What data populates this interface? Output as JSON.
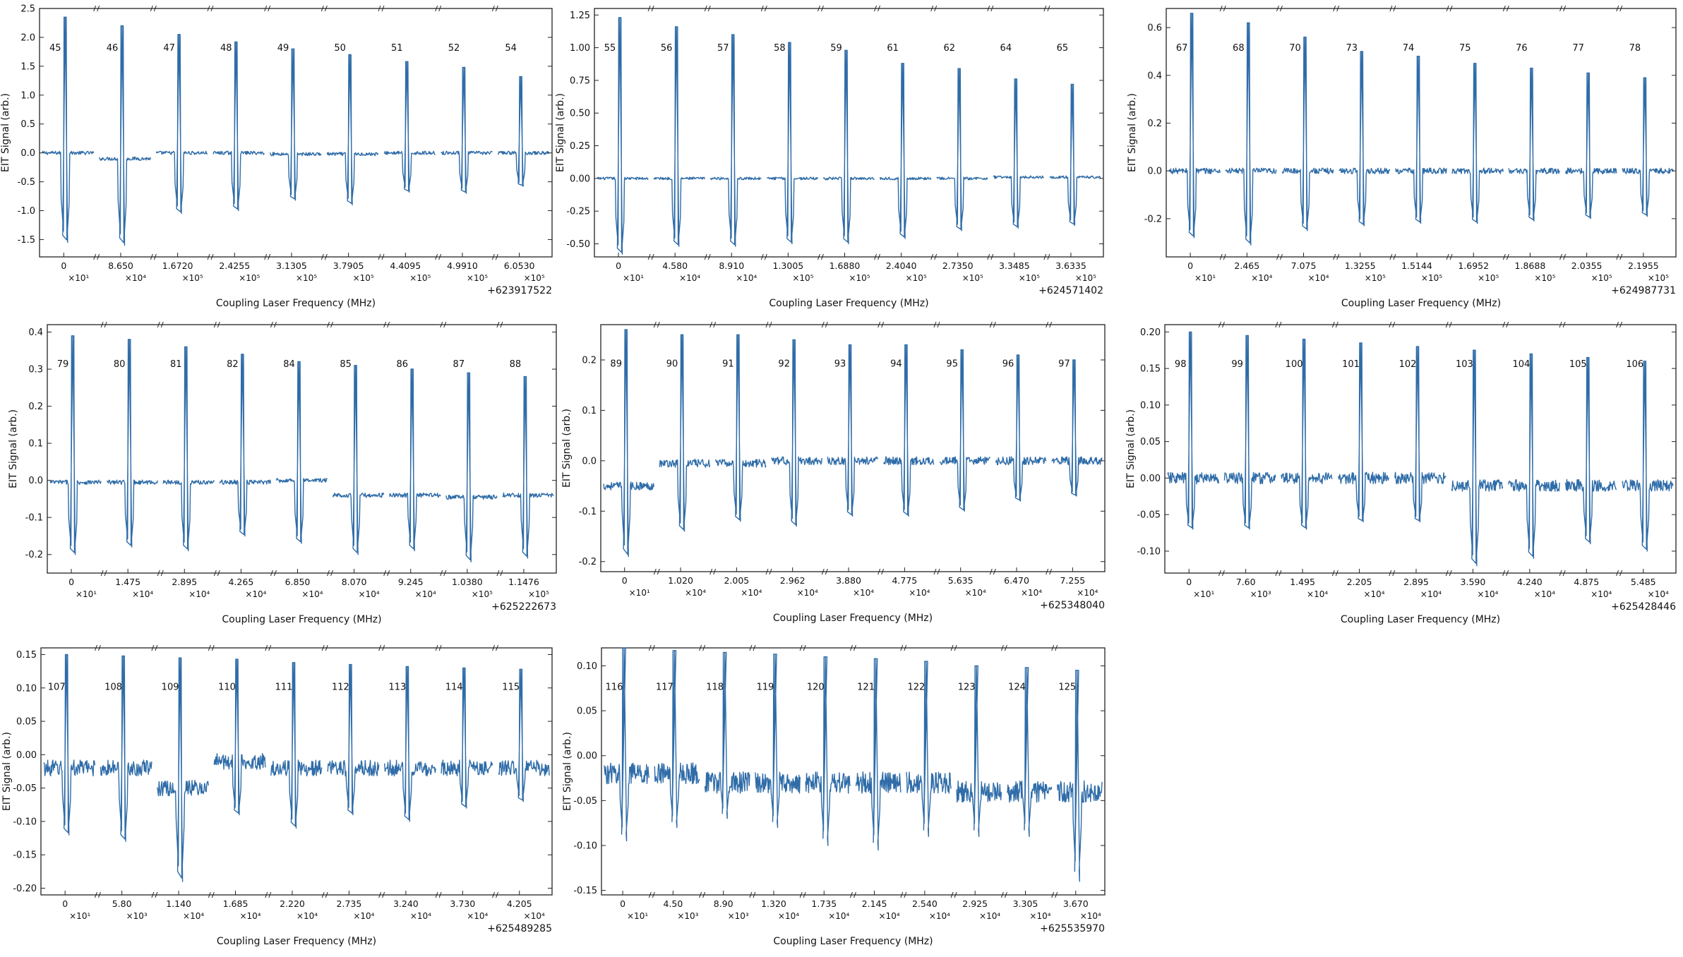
{
  "chart_data": [
    {
      "type": "line",
      "ylabel": "EIT Signal (arb.)",
      "xlabel": "Coupling Laser Frequency (MHz)",
      "offset_label": "+623917522",
      "ylim": [
        -1.8,
        2.5
      ],
      "yticks": [
        "-1.5",
        "-1.0",
        "-0.5",
        "0.0",
        "0.5",
        "1.0",
        "1.5",
        "2.0",
        "2.5"
      ],
      "ytick_values": [
        -1.5,
        -1.0,
        -0.5,
        0.0,
        0.5,
        1.0,
        1.5,
        2.0,
        2.5
      ],
      "xticks": [
        "0",
        "8.650",
        "1.6720",
        "2.4255",
        "3.1305",
        "3.7905",
        "4.4095",
        "4.9910",
        "6.0530"
      ],
      "xtick_multipliers": [
        "×10¹",
        "×10⁴",
        "×10⁵",
        "×10⁵",
        "×10⁵",
        "×10⁵",
        "×10⁵",
        "×10⁵",
        "×10⁵"
      ],
      "peak_labels": [
        "45",
        "46",
        "47",
        "48",
        "49",
        "50",
        "51",
        "52",
        "54"
      ],
      "peaks": [
        2.35,
        2.2,
        2.05,
        1.92,
        1.8,
        1.7,
        1.58,
        1.48,
        1.32
      ],
      "dips": [
        -1.55,
        -1.6,
        -1.05,
        -1.0,
        -0.82,
        -0.9,
        -0.68,
        -0.7,
        -0.58
      ],
      "noise": 0.03,
      "baseline": [
        0.0,
        -0.1,
        0.0,
        0.0,
        -0.02,
        -0.02,
        0.0,
        0.0,
        0.0
      ],
      "gridlines": false
    },
    {
      "type": "line",
      "ylabel": "EIT Signal (arb.)",
      "xlabel": "Coupling Laser Frequency (MHz)",
      "offset_label": "+624571402",
      "ylim": [
        -0.6,
        1.3
      ],
      "yticks": [
        "-0.50",
        "-0.25",
        "0.00",
        "0.25",
        "0.50",
        "0.75",
        "1.00",
        "1.25"
      ],
      "ytick_values": [
        -0.5,
        -0.25,
        0.0,
        0.25,
        0.5,
        0.75,
        1.0,
        1.25
      ],
      "xticks": [
        "0",
        "4.580",
        "8.910",
        "1.3005",
        "1.6880",
        "2.4040",
        "2.7350",
        "3.3485",
        "3.6335"
      ],
      "xtick_multipliers": [
        "×10¹",
        "×10⁴",
        "×10⁴",
        "×10⁵",
        "×10⁵",
        "×10⁵",
        "×10⁵",
        "×10⁵",
        "×10⁵"
      ],
      "peak_labels": [
        "55",
        "56",
        "57",
        "58",
        "59",
        "61",
        "62",
        "64",
        "65"
      ],
      "peaks": [
        1.23,
        1.16,
        1.1,
        1.04,
        0.98,
        0.88,
        0.84,
        0.76,
        0.72
      ],
      "dips": [
        -0.58,
        -0.52,
        -0.52,
        -0.5,
        -0.5,
        -0.46,
        -0.4,
        -0.38,
        -0.36
      ],
      "noise": 0.01,
      "baseline": [
        0.0,
        0.0,
        0.0,
        0.0,
        0.0,
        0.0,
        0.0,
        0.01,
        0.01
      ],
      "gridlines": false
    },
    {
      "type": "line",
      "ylabel": "EIT Signal (arb.)",
      "xlabel": "Coupling Laser Frequency (MHz)",
      "offset_label": "+624987731",
      "ylim": [
        -0.36,
        0.68
      ],
      "yticks": [
        "-0.2",
        "0.0",
        "0.2",
        "0.4",
        "0.6"
      ],
      "ytick_values": [
        -0.2,
        0.0,
        0.2,
        0.4,
        0.6
      ],
      "xticks": [
        "0",
        "2.465",
        "7.075",
        "1.3255",
        "1.5144",
        "1.6952",
        "1.8688",
        "2.0355",
        "2.1955"
      ],
      "xtick_multipliers": [
        "×10¹",
        "×10⁴",
        "×10⁴",
        "×10⁵",
        "×10⁵",
        "×10⁵",
        "×10⁵",
        "×10⁵",
        "×10⁵"
      ],
      "peak_labels": [
        "67",
        "68",
        "70",
        "73",
        "74",
        "75",
        "76",
        "77",
        "78"
      ],
      "peaks": [
        0.66,
        0.62,
        0.56,
        0.5,
        0.48,
        0.45,
        0.43,
        0.41,
        0.39
      ],
      "dips": [
        -0.28,
        -0.31,
        -0.25,
        -0.23,
        -0.22,
        -0.22,
        -0.21,
        -0.2,
        -0.19
      ],
      "noise": 0.012,
      "baseline": [
        0.0,
        0.0,
        0.0,
        0.0,
        0.0,
        0.0,
        0.0,
        0.0,
        0.0
      ],
      "gridlines": false
    },
    {
      "type": "line",
      "ylabel": "EIT Signal (arb.)",
      "xlabel": "Coupling Laser Frequency (MHz)",
      "offset_label": "+625222673",
      "ylim": [
        -0.25,
        0.42
      ],
      "yticks": [
        "-0.2",
        "-0.1",
        "0.0",
        "0.1",
        "0.2",
        "0.3",
        "0.4"
      ],
      "ytick_values": [
        -0.2,
        -0.1,
        0.0,
        0.1,
        0.2,
        0.3,
        0.4
      ],
      "xticks": [
        "0",
        "1.475",
        "2.895",
        "4.265",
        "6.850",
        "8.070",
        "9.245",
        "1.0380",
        "1.1476"
      ],
      "xtick_multipliers": [
        "×10¹",
        "×10⁴",
        "×10⁴",
        "×10⁴",
        "×10⁴",
        "×10⁴",
        "×10⁴",
        "×10⁵",
        "×10⁵"
      ],
      "peak_labels": [
        "79",
        "80",
        "81",
        "82",
        "84",
        "85",
        "86",
        "87",
        "88"
      ],
      "peaks": [
        0.39,
        0.38,
        0.36,
        0.34,
        0.32,
        0.31,
        0.3,
        0.29,
        0.28
      ],
      "dips": [
        -0.2,
        -0.18,
        -0.19,
        -0.15,
        -0.17,
        -0.2,
        -0.19,
        -0.22,
        -0.21
      ],
      "noise": 0.006,
      "baseline": [
        -0.005,
        -0.005,
        -0.005,
        -0.005,
        0.0,
        -0.04,
        -0.04,
        -0.045,
        -0.04
      ],
      "gridlines": false
    },
    {
      "type": "line",
      "ylabel": "EIT Signal (arb.)",
      "xlabel": "Coupling Laser Frequency (MHz)",
      "offset_label": "+625348040",
      "ylim": [
        -0.22,
        0.27
      ],
      "yticks": [
        "-0.2",
        "-0.1",
        "0.0",
        "0.1",
        "0.2"
      ],
      "ytick_values": [
        -0.2,
        -0.1,
        0.0,
        0.1,
        0.2
      ],
      "xticks": [
        "0",
        "1.020",
        "2.005",
        "2.962",
        "3.880",
        "4.775",
        "5.635",
        "6.470",
        "7.255"
      ],
      "xtick_multipliers": [
        "×10¹",
        "×10⁴",
        "×10⁴",
        "×10⁴",
        "×10⁴",
        "×10⁴",
        "×10⁴",
        "×10⁴",
        "×10⁴"
      ],
      "peak_labels": [
        "89",
        "90",
        "91",
        "92",
        "93",
        "94",
        "95",
        "96",
        "97"
      ],
      "peaks": [
        0.26,
        0.25,
        0.25,
        0.24,
        0.23,
        0.23,
        0.22,
        0.21,
        0.2
      ],
      "dips": [
        -0.19,
        -0.14,
        -0.12,
        -0.13,
        -0.11,
        -0.11,
        -0.1,
        -0.08,
        -0.07
      ],
      "noise": 0.008,
      "baseline": [
        -0.05,
        -0.005,
        -0.005,
        0.0,
        0.0,
        0.0,
        0.0,
        0.0,
        0.0
      ],
      "gridlines": false
    },
    {
      "type": "line",
      "ylabel": "EIT Signal (arb.)",
      "xlabel": "Coupling Laser Frequency (MHz)",
      "offset_label": "+625428446",
      "ylim": [
        -0.13,
        0.21
      ],
      "yticks": [
        "-0.10",
        "-0.05",
        "0.00",
        "0.05",
        "0.10",
        "0.15",
        "0.20"
      ],
      "ytick_values": [
        -0.1,
        -0.05,
        0.0,
        0.05,
        0.1,
        0.15,
        0.2
      ],
      "xticks": [
        "0",
        "7.60",
        "1.495",
        "2.205",
        "2.895",
        "3.590",
        "4.240",
        "4.875",
        "5.485"
      ],
      "xtick_multipliers": [
        "×10¹",
        "×10³",
        "×10⁴",
        "×10⁴",
        "×10⁴",
        "×10⁴",
        "×10⁴",
        "×10⁴",
        "×10⁴"
      ],
      "peak_labels": [
        "98",
        "99",
        "100",
        "101",
        "102",
        "103",
        "104",
        "105",
        "106"
      ],
      "peaks": [
        0.2,
        0.195,
        0.19,
        0.185,
        0.18,
        0.175,
        0.17,
        0.165,
        0.16
      ],
      "dips": [
        -0.07,
        -0.07,
        -0.07,
        -0.06,
        -0.06,
        -0.12,
        -0.11,
        -0.09,
        -0.1
      ],
      "noise": 0.008,
      "baseline": [
        0.0,
        0.0,
        0.0,
        0.0,
        0.0,
        -0.01,
        -0.01,
        -0.01,
        -0.01
      ],
      "gridlines": false
    },
    {
      "type": "line",
      "ylabel": "EIT Signal (arb.)",
      "xlabel": "Coupling Laser Frequency (MHz)",
      "offset_label": "+625489285",
      "ylim": [
        -0.21,
        0.16
      ],
      "yticks": [
        "-0.20",
        "-0.15",
        "-0.10",
        "-0.05",
        "0.00",
        "0.05",
        "0.10",
        "0.15"
      ],
      "ytick_values": [
        -0.2,
        -0.15,
        -0.1,
        -0.05,
        0.0,
        0.05,
        0.1,
        0.15
      ],
      "xticks": [
        "0",
        "5.80",
        "1.140",
        "1.685",
        "2.220",
        "2.735",
        "3.240",
        "3.730",
        "4.205"
      ],
      "xtick_multipliers": [
        "×10¹",
        "×10³",
        "×10⁴",
        "×10⁴",
        "×10⁴",
        "×10⁴",
        "×10⁴",
        "×10⁴",
        "×10⁴"
      ],
      "peak_labels": [
        "107",
        "108",
        "109",
        "110",
        "111",
        "112",
        "113",
        "114",
        "115"
      ],
      "peaks": [
        0.15,
        0.148,
        0.145,
        0.143,
        0.138,
        0.135,
        0.132,
        0.13,
        0.128
      ],
      "dips": [
        -0.12,
        -0.13,
        -0.19,
        -0.09,
        -0.11,
        -0.09,
        -0.1,
        -0.08,
        -0.07
      ],
      "noise": 0.012,
      "baseline": [
        -0.02,
        -0.02,
        -0.05,
        -0.01,
        -0.02,
        -0.02,
        -0.02,
        -0.02,
        -0.02
      ],
      "gridlines": false
    },
    {
      "type": "line",
      "ylabel": "EIT Signal (arb.)",
      "xlabel": "Coupling Laser Frequency (MHz)",
      "offset_label": "+625535970",
      "ylim": [
        -0.155,
        0.12
      ],
      "yticks": [
        "-0.15",
        "-0.10",
        "-0.05",
        "0.00",
        "0.05",
        "0.10"
      ],
      "ytick_values": [
        -0.15,
        -0.1,
        -0.05,
        0.0,
        0.05,
        0.1
      ],
      "xticks": [
        "0",
        "4.50",
        "8.90",
        "1.320",
        "1.735",
        "2.145",
        "2.540",
        "2.925",
        "3.305",
        "3.670"
      ],
      "xtick_multipliers": [
        "×10¹",
        "×10³",
        "×10³",
        "×10⁴",
        "×10⁴",
        "×10⁴",
        "×10⁴",
        "×10⁴",
        "×10⁴",
        "×10⁴"
      ],
      "peak_labels": [
        "116",
        "117",
        "118",
        "119",
        "120",
        "121",
        "122",
        "123",
        "124",
        "125"
      ],
      "peaks": [
        0.12,
        0.117,
        0.115,
        0.113,
        0.11,
        0.108,
        0.105,
        0.1,
        0.098,
        0.095
      ],
      "dips": [
        -0.095,
        -0.08,
        -0.07,
        -0.08,
        -0.1,
        -0.105,
        -0.09,
        -0.09,
        -0.09,
        -0.14
      ],
      "noise": 0.012,
      "baseline": [
        -0.02,
        -0.02,
        -0.03,
        -0.03,
        -0.03,
        -0.03,
        -0.03,
        -0.04,
        -0.04,
        -0.04
      ],
      "gridlines": false
    }
  ],
  "style": {
    "line_color": "#2f6ca8",
    "axis_color": "#222222"
  }
}
